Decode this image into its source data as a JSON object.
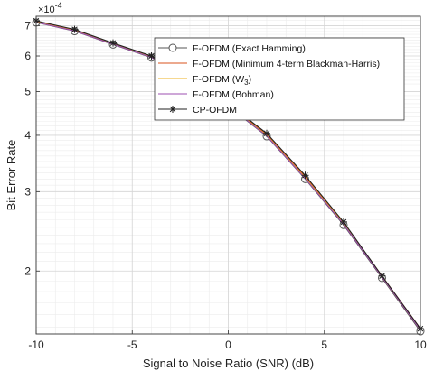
{
  "chart_data": {
    "type": "line",
    "xlabel": "Signal to Noise Ratio (SNR) (dB)",
    "ylabel": "Bit Error Rate",
    "xlim": [
      -10,
      10
    ],
    "ylim": [
      0.000145,
      0.000735
    ],
    "yscale": "log",
    "y_exponent_base": "×10",
    "y_exponent_power": "-4",
    "y_multiplier": 0.0001,
    "x_ticks": [
      -10,
      -5,
      0,
      5,
      10
    ],
    "x_tick_labels": [
      "-10",
      "-5",
      "0",
      "5",
      "10"
    ],
    "y_ticks": [
      2,
      3,
      4,
      5,
      6,
      7
    ],
    "y_tick_labels": [
      "2",
      "3",
      "4",
      "5",
      "6",
      "7"
    ],
    "grid": true,
    "minor_grid": true,
    "legend_position": "top-right",
    "x": [
      -10,
      -8,
      -6,
      -4,
      -2,
      0,
      2,
      4,
      6,
      8,
      10
    ],
    "series": [
      {
        "name": "F-OFDM (Exact Hamming)",
        "color": "#555555",
        "marker": "circle",
        "values": [
          0.000712,
          0.000681,
          0.000636,
          0.000595,
          0.000534,
          0.000464,
          0.000398,
          0.00032,
          0.000253,
          0.000193,
          0.000147
        ]
      },
      {
        "name": "F-OFDM (Minimum 4-term Blackman-Harris)",
        "color": "#d9531e",
        "marker": "none",
        "values": [
          0.000716,
          0.000685,
          0.00064,
          0.000598,
          0.000538,
          0.000468,
          0.000402,
          0.000324,
          0.000256,
          0.000195,
          0.000149
        ]
      },
      {
        "name_prefix": "F-OFDM (W",
        "name_sub": "3",
        "name_suffix": ")",
        "color": "#edb120",
        "marker": "none",
        "values": [
          0.000714,
          0.000683,
          0.000638,
          0.000597,
          0.000536,
          0.000466,
          0.0004,
          0.000322,
          0.000255,
          0.000194,
          0.000148
        ]
      },
      {
        "name": "F-OFDM (Bohman)",
        "color": "#9d4fb0",
        "marker": "none",
        "values": [
          0.000713,
          0.000682,
          0.000637,
          0.000596,
          0.000535,
          0.000465,
          0.000399,
          0.000321,
          0.000254,
          0.000194,
          0.000148
        ]
      },
      {
        "name": "CP-OFDM",
        "color": "#222222",
        "marker": "asterisk",
        "values": [
          0.000718,
          0.000687,
          0.000641,
          0.0006,
          0.00054,
          0.00047,
          0.000404,
          0.000326,
          0.000257,
          0.000195,
          0.000149
        ]
      }
    ]
  }
}
